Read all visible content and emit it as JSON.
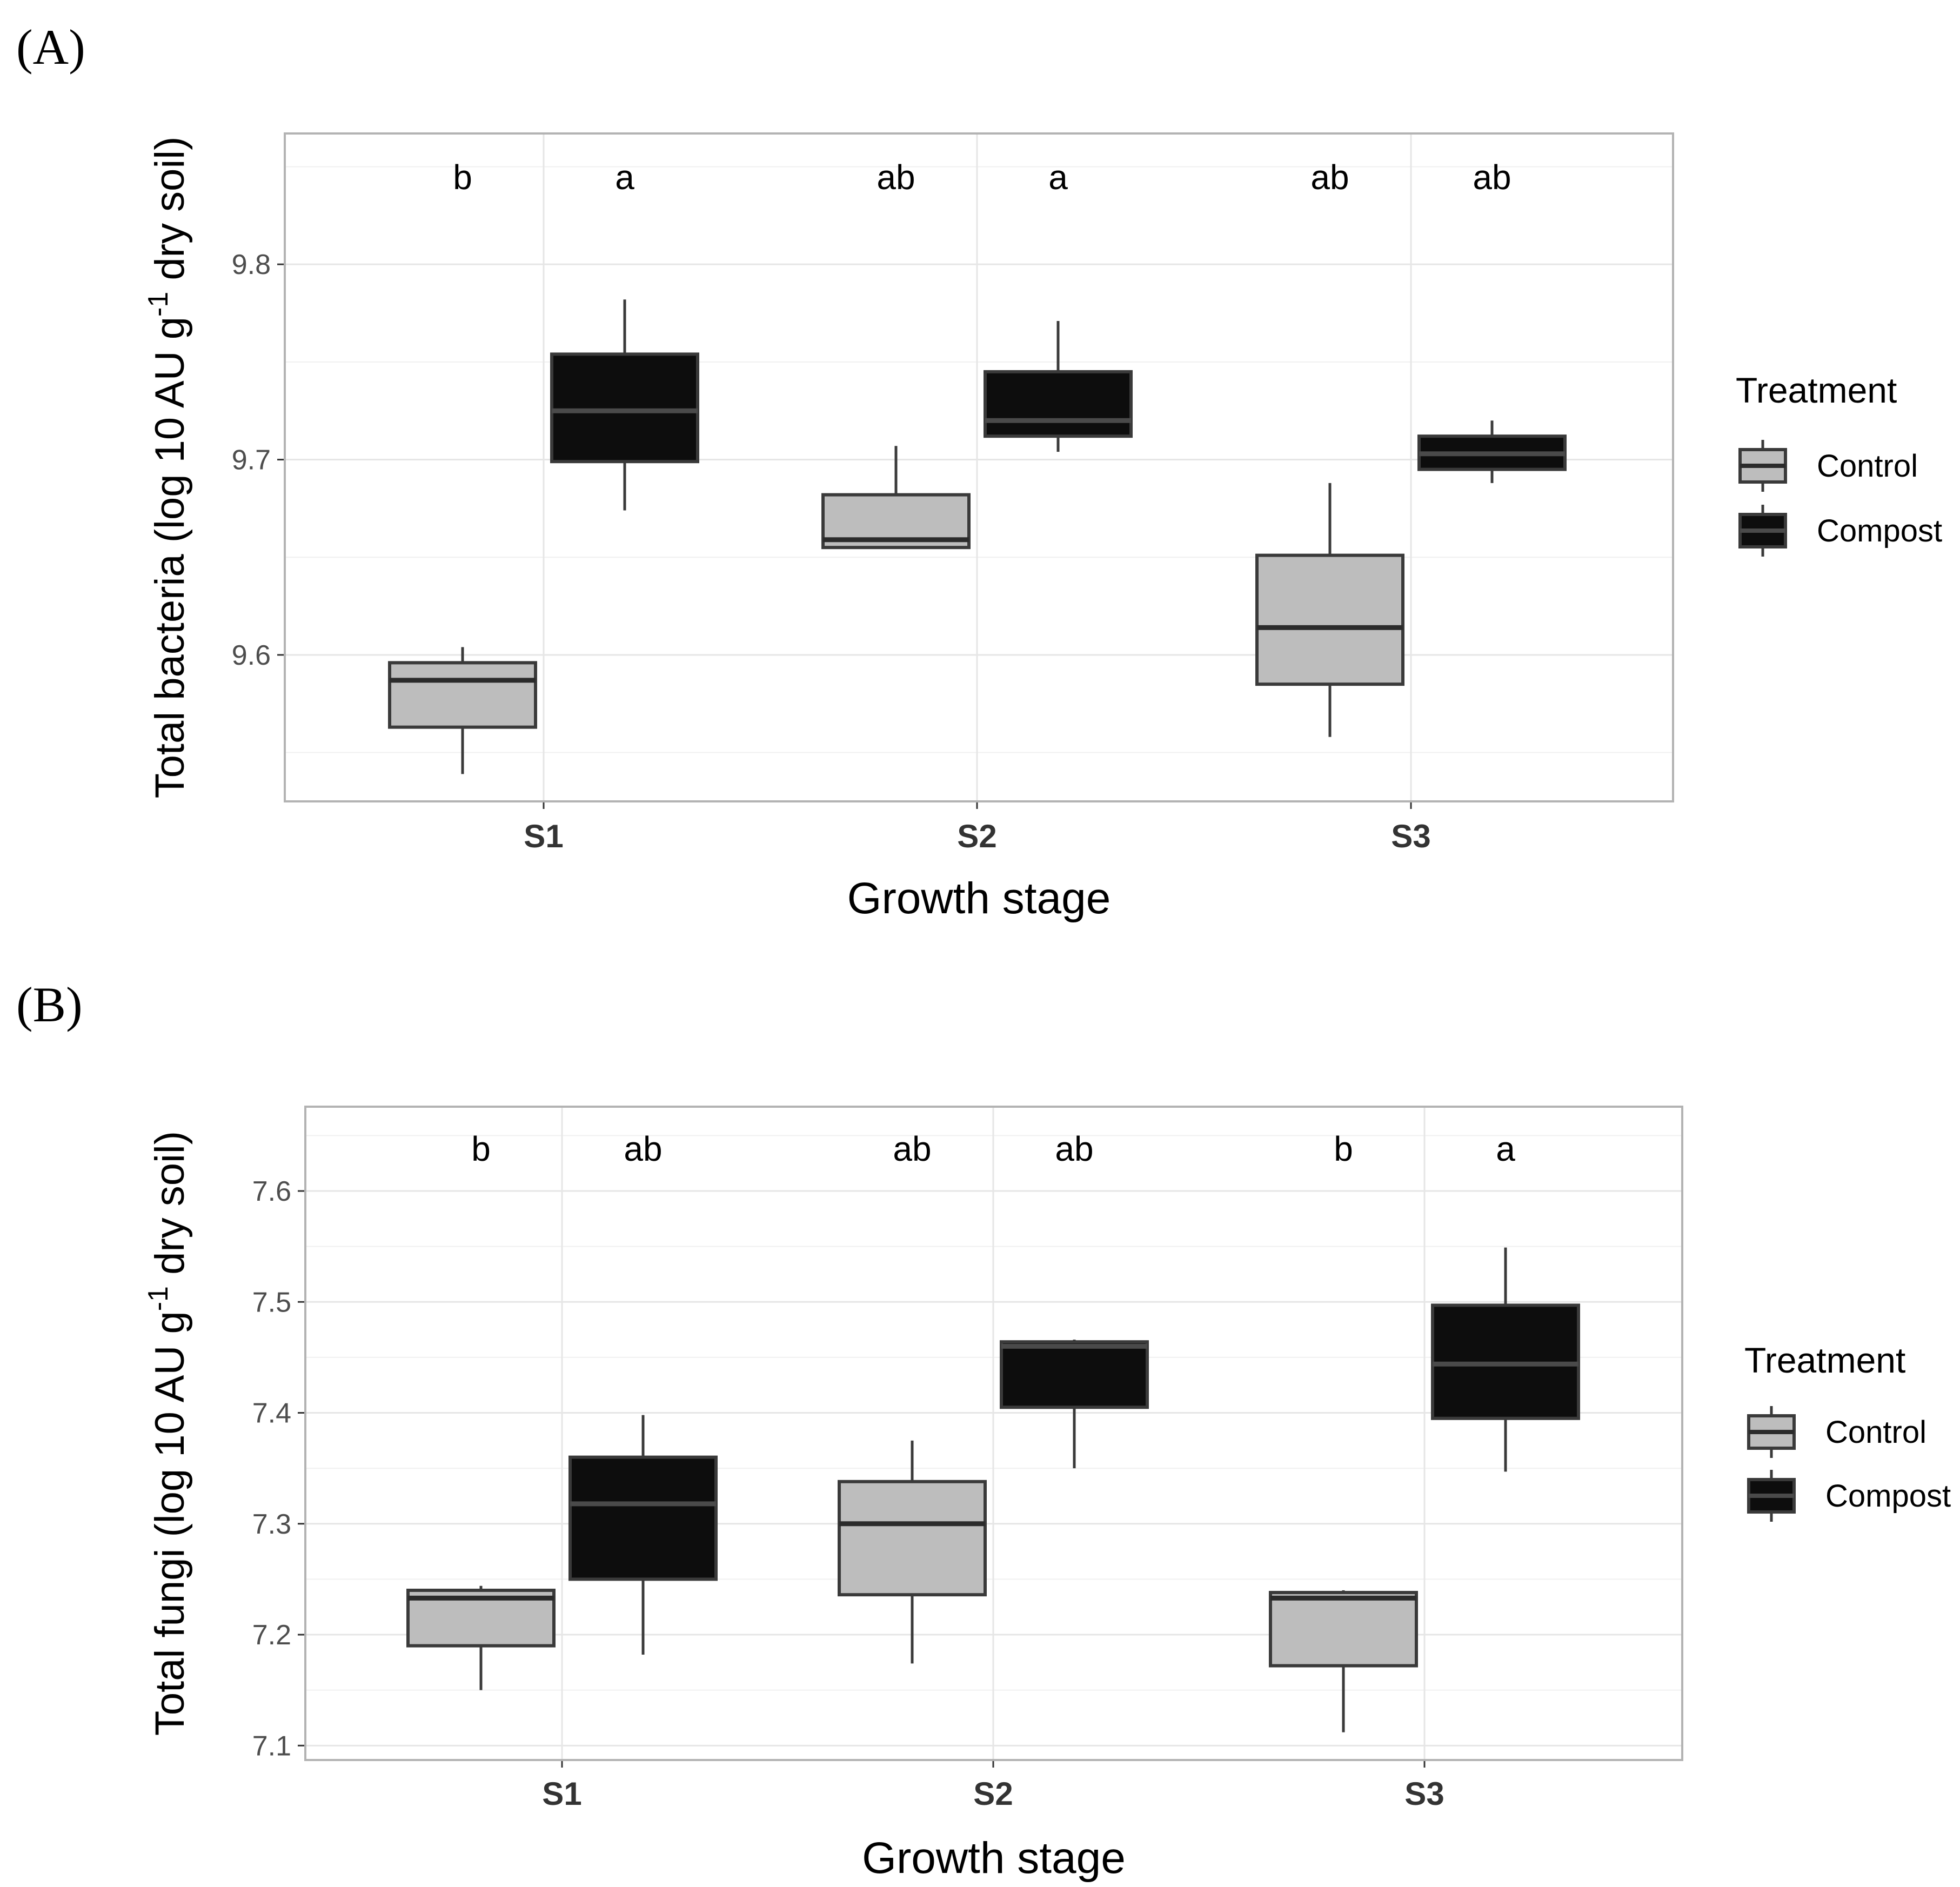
{
  "colors": {
    "control_fill": "#bdbdbd",
    "compost_fill": "#0d0d0d",
    "box_stroke": "#3a3a3a",
    "grid": "#e6e6e6",
    "panel_border": "#b3b3b3",
    "text": "#000000",
    "tick_text": "#4d4d4d"
  },
  "chart_data": [
    {
      "type": "box",
      "panel_label": "(A)",
      "xlabel": "Growth stage",
      "ylabel_parts": {
        "before": "Total bacteria (log 10 AU g",
        "sup": "-1",
        "after": " dry soil)"
      },
      "categories": [
        "S1",
        "S2",
        "S3"
      ],
      "ylim": [
        9.525,
        9.867
      ],
      "yticks": [
        9.6,
        9.7,
        9.8
      ],
      "ytick_labels": [
        "9.6",
        "9.7",
        "9.8"
      ],
      "grid": true,
      "legend": {
        "title": "Treatment",
        "position": "right"
      },
      "series": [
        {
          "name": "Control",
          "fill": "#bdbdbd",
          "boxes": [
            {
              "lower_whisker": 9.539,
              "q1": 9.563,
              "median": 9.587,
              "q3": 9.596,
              "upper_whisker": 9.604,
              "letter": "b"
            },
            {
              "lower_whisker": 9.655,
              "q1": 9.655,
              "median": 9.659,
              "q3": 9.682,
              "upper_whisker": 9.707,
              "letter": "ab"
            },
            {
              "lower_whisker": 9.558,
              "q1": 9.585,
              "median": 9.614,
              "q3": 9.651,
              "upper_whisker": 9.688,
              "letter": "ab"
            }
          ]
        },
        {
          "name": "Compost",
          "fill": "#0d0d0d",
          "boxes": [
            {
              "lower_whisker": 9.674,
              "q1": 9.699,
              "median": 9.725,
              "q3": 9.754,
              "upper_whisker": 9.782,
              "letter": "a"
            },
            {
              "lower_whisker": 9.704,
              "q1": 9.712,
              "median": 9.72,
              "q3": 9.745,
              "upper_whisker": 9.771,
              "letter": "a"
            },
            {
              "lower_whisker": 9.688,
              "q1": 9.695,
              "median": 9.703,
              "q3": 9.712,
              "upper_whisker": 9.72,
              "letter": "ab"
            }
          ]
        }
      ]
    },
    {
      "type": "box",
      "panel_label": "(B)",
      "xlabel": "Growth stage",
      "ylabel_parts": {
        "before": "Total fungi (log 10 AU g",
        "sup": "-1",
        "after": " dry soil)"
      },
      "categories": [
        "S1",
        "S2",
        "S3"
      ],
      "ylim": [
        7.087,
        7.676
      ],
      "yticks": [
        7.1,
        7.2,
        7.3,
        7.4,
        7.5,
        7.6
      ],
      "ytick_labels": [
        "7.1",
        "7.2",
        "7.3",
        "7.4",
        "7.5",
        "7.6"
      ],
      "grid": true,
      "legend": {
        "title": "Treatment",
        "position": "right"
      },
      "series": [
        {
          "name": "Control",
          "fill": "#bdbdbd",
          "boxes": [
            {
              "lower_whisker": 7.15,
              "q1": 7.19,
              "median": 7.233,
              "q3": 7.24,
              "upper_whisker": 7.244,
              "letter": "b"
            },
            {
              "lower_whisker": 7.174,
              "q1": 7.236,
              "median": 7.3,
              "q3": 7.338,
              "upper_whisker": 7.375,
              "letter": "ab"
            },
            {
              "lower_whisker": 7.112,
              "q1": 7.172,
              "median": 7.233,
              "q3": 7.238,
              "upper_whisker": 7.24,
              "letter": "b"
            }
          ]
        },
        {
          "name": "Compost",
          "fill": "#0d0d0d",
          "boxes": [
            {
              "lower_whisker": 7.182,
              "q1": 7.25,
              "median": 7.318,
              "q3": 7.36,
              "upper_whisker": 7.398,
              "letter": "ab"
            },
            {
              "lower_whisker": 7.35,
              "q1": 7.405,
              "median": 7.46,
              "q3": 7.464,
              "upper_whisker": 7.466,
              "letter": "ab"
            },
            {
              "lower_whisker": 7.347,
              "q1": 7.395,
              "median": 7.444,
              "q3": 7.497,
              "upper_whisker": 7.549,
              "letter": "a"
            }
          ]
        }
      ]
    }
  ]
}
